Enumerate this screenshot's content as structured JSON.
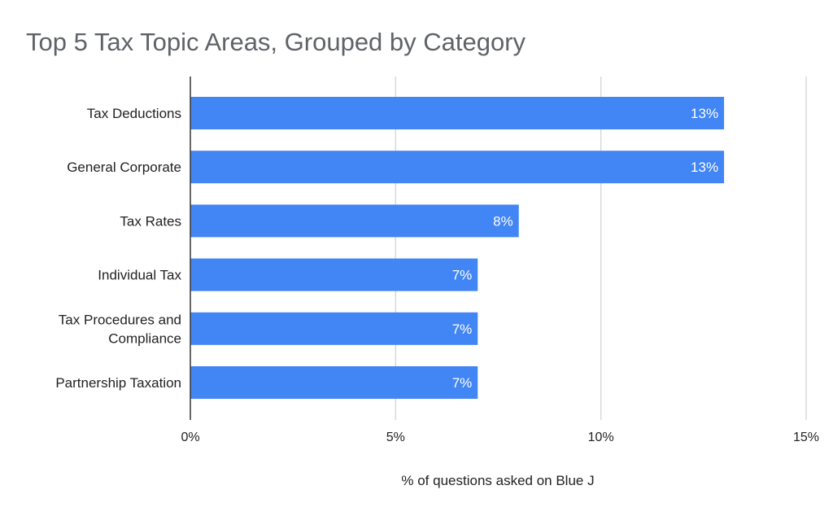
{
  "chart_data": {
    "type": "bar",
    "orientation": "horizontal",
    "title": "Top 5 Tax Topic Areas, Grouped by Category",
    "xlabel": "% of questions asked on Blue J",
    "ylabel": "",
    "categories": [
      [
        "Tax Deductions"
      ],
      [
        "General Corporate"
      ],
      [
        "Tax Rates"
      ],
      [
        "Individual Tax"
      ],
      [
        "Tax Procedures and",
        "Compliance"
      ],
      [
        "Partnership Taxation"
      ]
    ],
    "values": [
      13,
      13,
      8,
      7,
      7,
      7
    ],
    "value_labels": [
      "13%",
      "13%",
      "8%",
      "7%",
      "7%",
      "7%"
    ],
    "xlim": [
      0,
      15
    ],
    "xticks": [
      0,
      5,
      10,
      15
    ],
    "xtick_labels": [
      "0%",
      "5%",
      "10%",
      "15%"
    ],
    "grid": "vertical",
    "legend": "none",
    "bar_color": "#4285f4",
    "grid_color": "#d9d9d9",
    "axis_color": "#333333"
  }
}
